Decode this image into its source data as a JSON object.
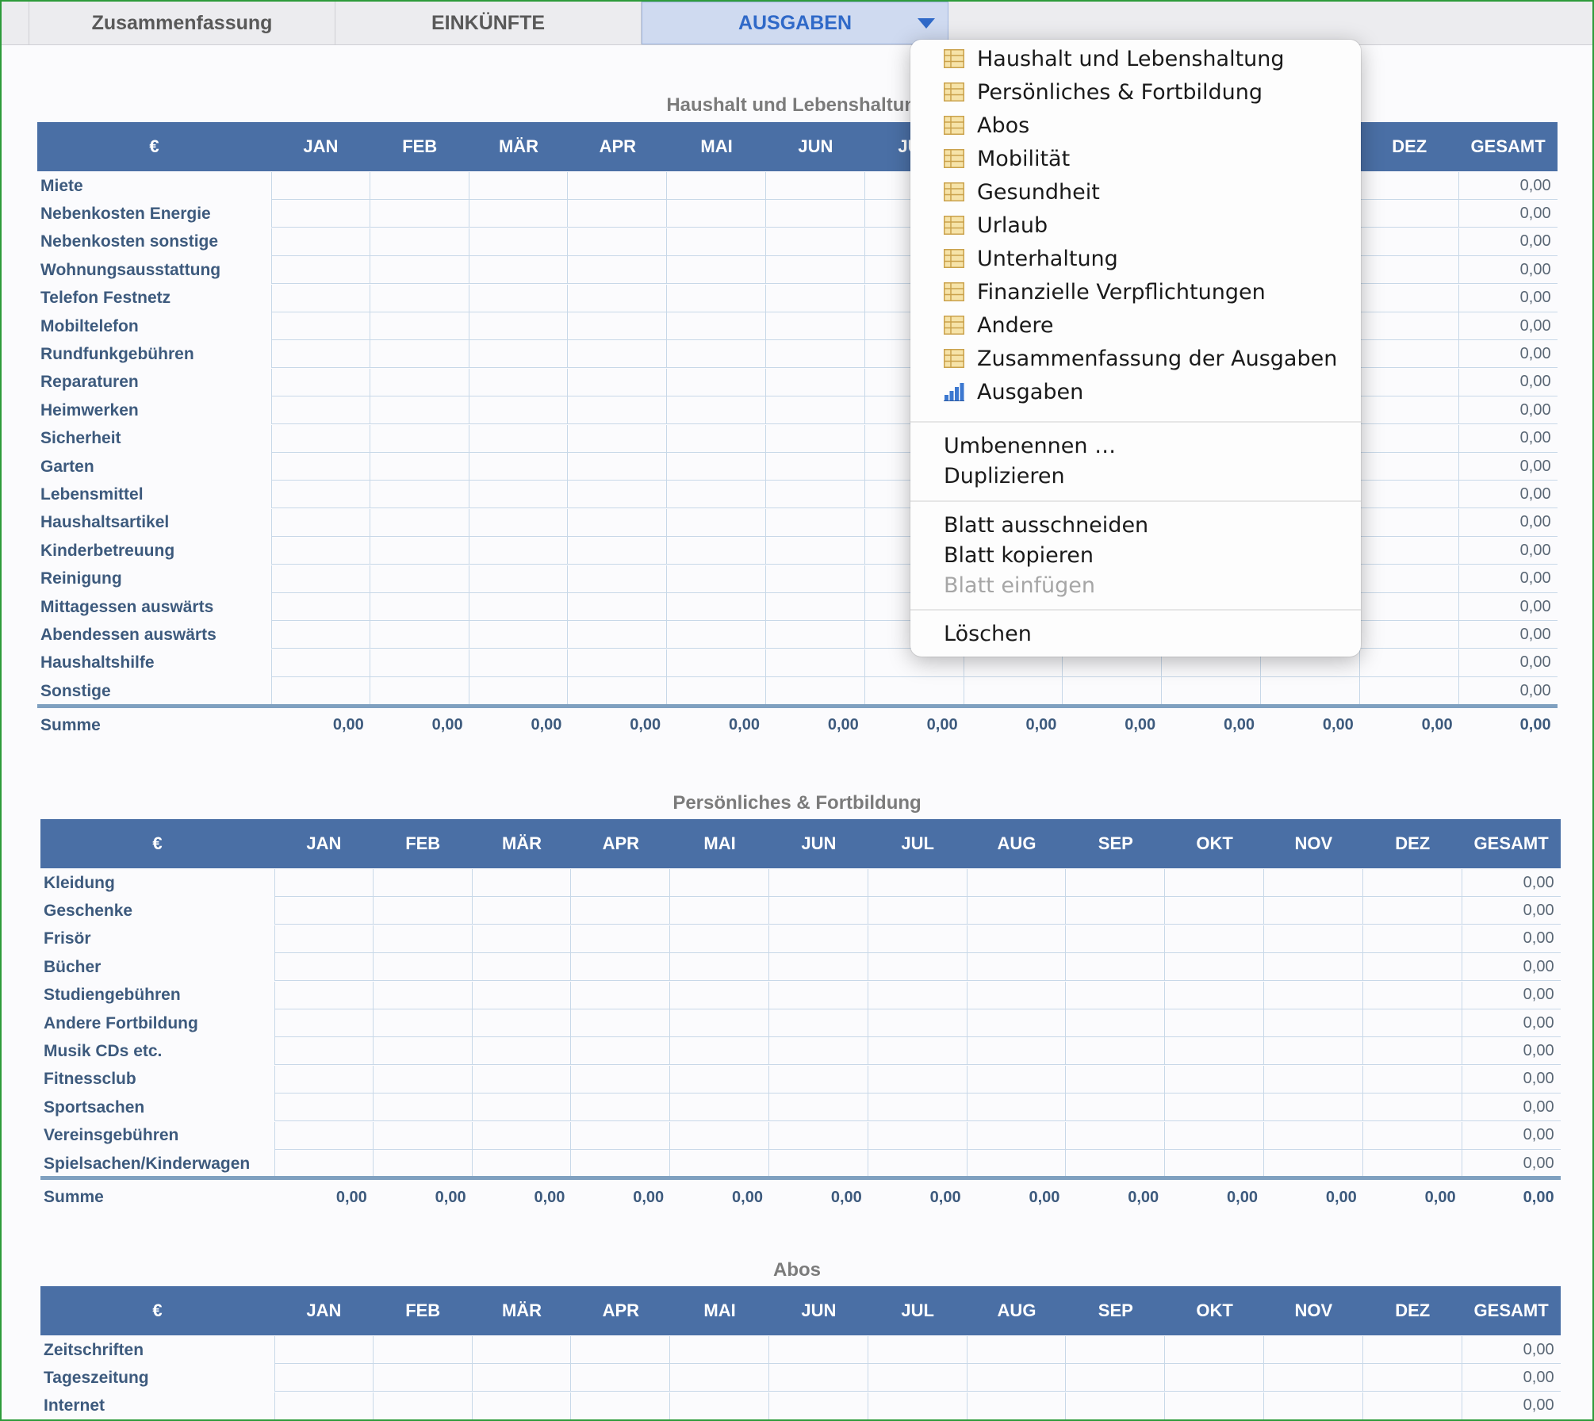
{
  "tabs": [
    {
      "label": "Zusammenfassung"
    },
    {
      "label": "EINKÜNFTE"
    },
    {
      "label": "AUSGABEN",
      "selected": true
    }
  ],
  "months": [
    "JAN",
    "FEB",
    "MÄR",
    "APR",
    "MAI",
    "JUN",
    "JUL",
    "AUG",
    "SEP",
    "OKT",
    "NOV",
    "DEZ"
  ],
  "currency_header": "€",
  "total_header": "GESAMT",
  "zero": "0,00",
  "sum_label": "Summe",
  "sections": [
    {
      "title": "Haushalt und Lebenshaltung",
      "rows": [
        "Miete",
        "Nebenkosten Energie",
        "Nebenkosten sonstige",
        "Wohnungsausstattung",
        "Telefon Festnetz",
        "Mobiltelefon",
        "Rundfunkgebühren",
        "Reparaturen",
        "Heimwerken",
        "Sicherheit",
        "Garten",
        "Lebensmittel",
        "Haushaltsartikel",
        "Kinderbetreuung",
        "Reinigung",
        "Mittagessen auswärts",
        "Abendessen auswärts",
        "Haushaltshilfe",
        "Sonstige"
      ]
    },
    {
      "title": "Persönliches & Fortbildung",
      "rows": [
        "Kleidung",
        "Geschenke",
        "Frisör",
        "Bücher",
        "Studiengebühren",
        "Andere Fortbildung",
        "Musik CDs etc.",
        "Fitnessclub",
        "Sportsachen",
        "Vereinsgebühren",
        "Spielsachen/Kinderwagen"
      ]
    },
    {
      "title": "Abos",
      "rows": [
        "Zeitschriften",
        "Tageszeitung",
        "Internet"
      ]
    }
  ],
  "menu": {
    "sheets": [
      {
        "label": "Haushalt und Lebenshaltung",
        "icon": "table-icon"
      },
      {
        "label": "Persönliches & Fortbildung",
        "icon": "table-icon"
      },
      {
        "label": "Abos",
        "icon": "table-icon"
      },
      {
        "label": "Mobilität",
        "icon": "table-icon"
      },
      {
        "label": "Gesundheit",
        "icon": "table-icon"
      },
      {
        "label": "Urlaub",
        "icon": "table-icon"
      },
      {
        "label": "Unterhaltung",
        "icon": "table-icon"
      },
      {
        "label": "Finanzielle Verpflichtungen",
        "icon": "table-icon"
      },
      {
        "label": "Andere",
        "icon": "table-icon"
      },
      {
        "label": "Zusammenfassung der Ausgaben",
        "icon": "table-icon"
      },
      {
        "label": "Ausgaben",
        "icon": "bar-chart-icon"
      }
    ],
    "rename": "Umbenennen …",
    "duplicate": "Duplizieren",
    "cut": "Blatt ausschneiden",
    "copy": "Blatt kopieren",
    "paste": "Blatt einfügen",
    "delete": "Löschen"
  },
  "colors": {
    "header": "#4a6fa5",
    "selected_tab": "#cfdaf0",
    "accent": "#2f69c8",
    "frame": "#2d9b3a"
  }
}
